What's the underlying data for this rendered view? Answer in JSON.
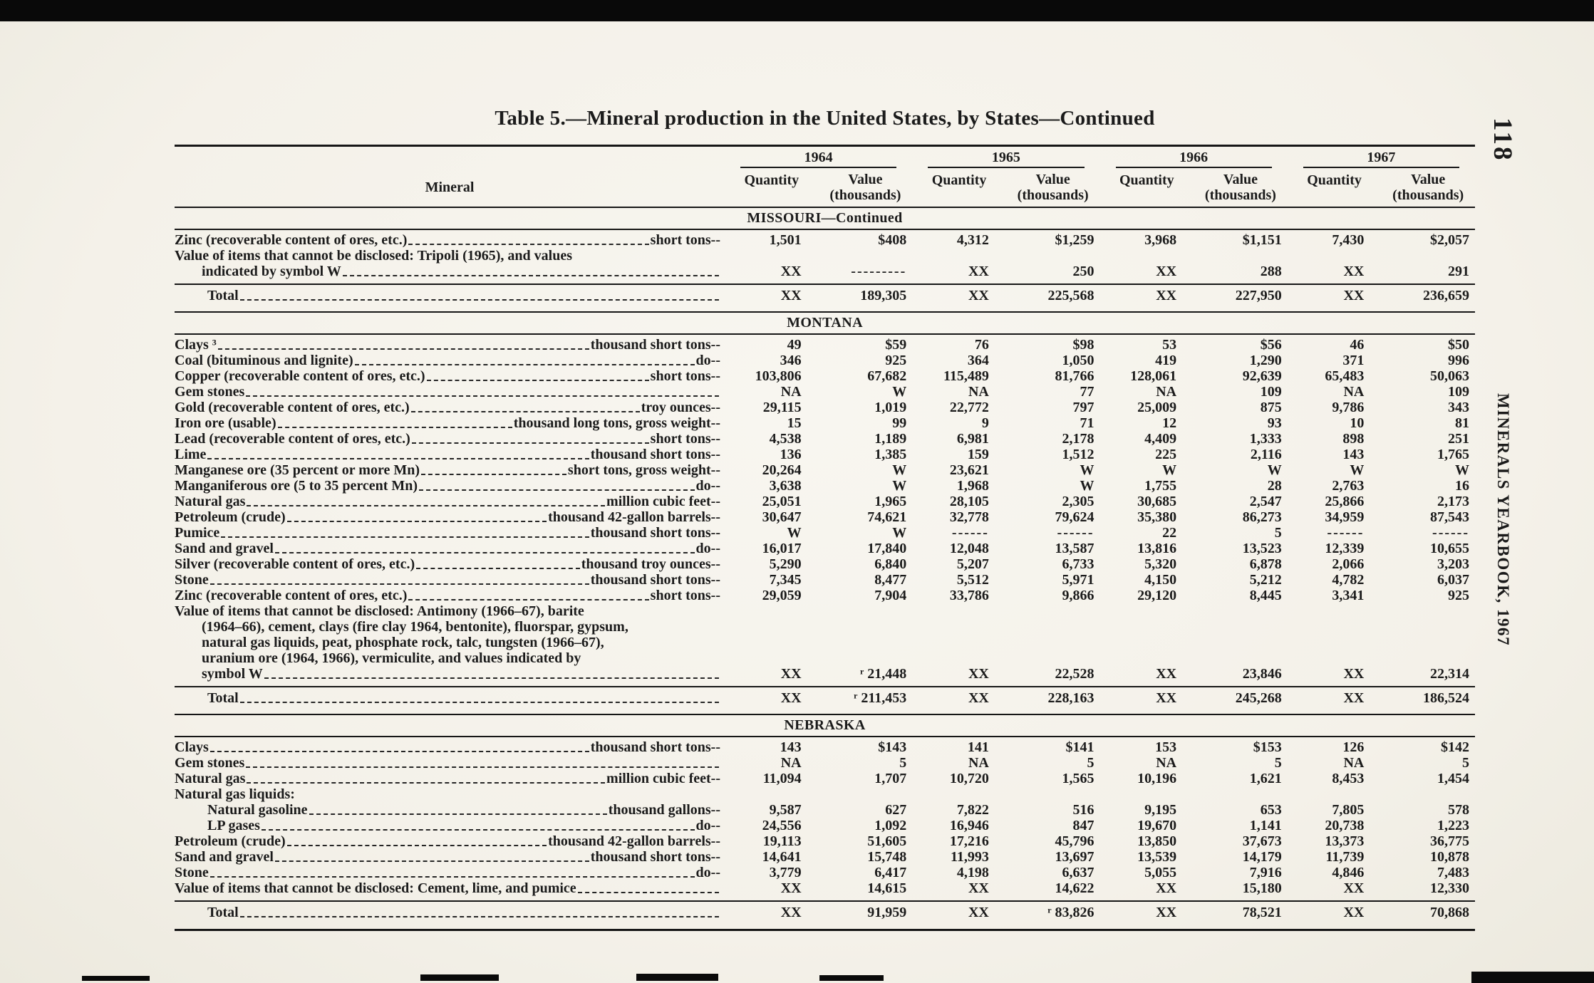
{
  "page": {
    "title": "Table 5.—Mineral production  in the United States, by States—Continued",
    "page_number": "118",
    "spine_text": "MINERALS YEARBOOK, 1967"
  },
  "table": {
    "mineral_header": "Mineral",
    "years": [
      "1964",
      "1965",
      "1966",
      "1967"
    ],
    "quantity_header": "Quantity",
    "value_header_line1": "Value",
    "value_header_line2": "(thousands)",
    "sections": [
      {
        "title": "MISSOURI—Continued",
        "rows": [
          {
            "type": "data",
            "label": "Zinc (recoverable content of ores, etc.)",
            "unit": "short tons",
            "values": [
              "1,501",
              "$408",
              "4,312",
              "$1,259",
              "3,968",
              "$1,151",
              "7,430",
              "$2,057"
            ]
          },
          {
            "type": "note",
            "label": [
              "Value of items that cannot be disclosed: Tripoli (1965), and values",
              "indicated by symbol W"
            ],
            "values": [
              "XX",
              "---------",
              "XX",
              "250",
              "XX",
              "288",
              "XX",
              "291"
            ]
          },
          {
            "type": "total",
            "label": "Total",
            "values": [
              "XX",
              "189,305",
              "XX",
              "225,568",
              "XX",
              "227,950",
              "XX",
              "236,659"
            ]
          }
        ]
      },
      {
        "title": "MONTANA",
        "rows": [
          {
            "type": "data",
            "label": "Clays ³",
            "unit": "thousand short tons",
            "values": [
              "49",
              "$59",
              "76",
              "$98",
              "53",
              "$56",
              "46",
              "$50"
            ]
          },
          {
            "type": "data",
            "label": "Coal (bituminous and lignite)",
            "unit": "do",
            "values": [
              "346",
              "925",
              "364",
              "1,050",
              "419",
              "1,290",
              "371",
              "996"
            ]
          },
          {
            "type": "data",
            "label": "Copper (recoverable content of ores, etc.)",
            "unit": "short tons",
            "values": [
              "103,806",
              "67,682",
              "115,489",
              "81,766",
              "128,061",
              "92,639",
              "65,483",
              "50,063"
            ]
          },
          {
            "type": "data",
            "label": "Gem stones",
            "unit": "",
            "values": [
              "NA",
              "W",
              "NA",
              "77",
              "NA",
              "109",
              "NA",
              "109"
            ]
          },
          {
            "type": "data",
            "label": "Gold (recoverable content of ores, etc.)",
            "unit": "troy ounces",
            "values": [
              "29,115",
              "1,019",
              "22,772",
              "797",
              "25,009",
              "875",
              "9,786",
              "343"
            ]
          },
          {
            "type": "data",
            "label": "Iron ore (usable)",
            "unit": "thousand long tons, gross weight",
            "values": [
              "15",
              "99",
              "9",
              "71",
              "12",
              "93",
              "10",
              "81"
            ]
          },
          {
            "type": "data",
            "label": "Lead (recoverable content of ores, etc.)",
            "unit": "short tons",
            "values": [
              "4,538",
              "1,189",
              "6,981",
              "2,178",
              "4,409",
              "1,333",
              "898",
              "251"
            ]
          },
          {
            "type": "data",
            "label": "Lime",
            "unit": "thousand short tons",
            "values": [
              "136",
              "1,385",
              "159",
              "1,512",
              "225",
              "2,116",
              "143",
              "1,765"
            ]
          },
          {
            "type": "data",
            "label": "Manganese ore (35 percent or more Mn)",
            "unit": "short tons, gross weight",
            "values": [
              "20,264",
              "W",
              "23,621",
              "W",
              "W",
              "W",
              "W",
              "W"
            ]
          },
          {
            "type": "data",
            "label": "Manganiferous ore (5 to 35 percent Mn)",
            "unit": "do",
            "values": [
              "3,638",
              "W",
              "1,968",
              "W",
              "1,755",
              "28",
              "2,763",
              "16"
            ]
          },
          {
            "type": "data",
            "label": "Natural gas",
            "unit": "million cubic feet",
            "values": [
              "25,051",
              "1,965",
              "28,105",
              "2,305",
              "30,685",
              "2,547",
              "25,866",
              "2,173"
            ]
          },
          {
            "type": "data",
            "label": "Petroleum (crude)",
            "unit": "thousand 42-gallon barrels",
            "values": [
              "30,647",
              "74,621",
              "32,778",
              "79,624",
              "35,380",
              "86,273",
              "34,959",
              "87,543"
            ]
          },
          {
            "type": "data",
            "label": "Pumice",
            "unit": "thousand short tons",
            "values": [
              "W",
              "W",
              "------",
              "------",
              "22",
              "5",
              "------",
              "------"
            ]
          },
          {
            "type": "data",
            "label": "Sand and gravel",
            "unit": "do",
            "values": [
              "16,017",
              "17,840",
              "12,048",
              "13,587",
              "13,816",
              "13,523",
              "12,339",
              "10,655"
            ]
          },
          {
            "type": "data",
            "label": "Silver (recoverable content of ores, etc.)",
            "unit": "thousand troy ounces",
            "values": [
              "5,290",
              "6,840",
              "5,207",
              "6,733",
              "5,320",
              "6,878",
              "2,066",
              "3,203"
            ]
          },
          {
            "type": "data",
            "label": "Stone",
            "unit": "thousand short tons",
            "values": [
              "7,345",
              "8,477",
              "5,512",
              "5,971",
              "4,150",
              "5,212",
              "4,782",
              "6,037"
            ]
          },
          {
            "type": "data",
            "label": "Zinc (recoverable content of ores, etc.)",
            "unit": "short tons",
            "values": [
              "29,059",
              "7,904",
              "33,786",
              "9,866",
              "29,120",
              "8,445",
              "3,341",
              "925"
            ]
          },
          {
            "type": "note",
            "label": [
              "Value of items that cannot be disclosed: Antimony (1966–67), barite",
              "(1964–66), cement, clays (fire clay 1964, bentonite), fluorspar, gypsum,",
              "natural gas liquids, peat, phosphate rock, talc, tungsten (1966–67),",
              "uranium ore (1964, 1966), vermiculite, and values indicated by",
              "symbol W"
            ],
            "values": [
              "XX",
              "ʳ 21,448",
              "XX",
              "22,528",
              "XX",
              "23,846",
              "XX",
              "22,314"
            ]
          },
          {
            "type": "total",
            "label": "Total",
            "values": [
              "XX",
              "ʳ 211,453",
              "XX",
              "228,163",
              "XX",
              "245,268",
              "XX",
              "186,524"
            ]
          }
        ]
      },
      {
        "title": "NEBRASKA",
        "rows": [
          {
            "type": "data",
            "label": "Clays",
            "unit": "thousand short tons",
            "values": [
              "143",
              "$143",
              "141",
              "$141",
              "153",
              "$153",
              "126",
              "$142"
            ]
          },
          {
            "type": "data",
            "label": "Gem stones",
            "unit": "",
            "values": [
              "NA",
              "5",
              "NA",
              "5",
              "NA",
              "5",
              "NA",
              "5"
            ]
          },
          {
            "type": "data",
            "label": "Natural gas",
            "unit": "million cubic feet",
            "values": [
              "11,094",
              "1,707",
              "10,720",
              "1,565",
              "10,196",
              "1,621",
              "8,453",
              "1,454"
            ]
          },
          {
            "type": "subhead",
            "label": "Natural gas liquids:"
          },
          {
            "type": "sub",
            "label": "Natural gasoline",
            "unit": "thousand gallons",
            "values": [
              "9,587",
              "627",
              "7,822",
              "516",
              "9,195",
              "653",
              "7,805",
              "578"
            ]
          },
          {
            "type": "sub",
            "label": "LP gases",
            "unit": "do",
            "values": [
              "24,556",
              "1,092",
              "16,946",
              "847",
              "19,670",
              "1,141",
              "20,738",
              "1,223"
            ]
          },
          {
            "type": "data",
            "label": "Petroleum (crude)",
            "unit": "thousand 42-gallon barrels",
            "values": [
              "19,113",
              "51,605",
              "17,216",
              "45,796",
              "13,850",
              "37,673",
              "13,373",
              "36,775"
            ]
          },
          {
            "type": "data",
            "label": "Sand and gravel",
            "unit": "thousand short tons",
            "values": [
              "14,641",
              "15,748",
              "11,993",
              "13,697",
              "13,539",
              "14,179",
              "11,739",
              "10,878"
            ]
          },
          {
            "type": "data",
            "label": "Stone",
            "unit": "do",
            "values": [
              "3,779",
              "6,417",
              "4,198",
              "6,637",
              "5,055",
              "7,916",
              "4,846",
              "7,483"
            ]
          },
          {
            "type": "note",
            "label": [
              "Value of items that cannot be disclosed: Cement, lime, and pumice"
            ],
            "values": [
              "XX",
              "14,615",
              "XX",
              "14,622",
              "XX",
              "15,180",
              "XX",
              "12,330"
            ]
          },
          {
            "type": "total",
            "label": "Total",
            "values": [
              "XX",
              "91,959",
              "XX",
              "ʳ 83,826",
              "XX",
              "78,521",
              "XX",
              "70,868"
            ]
          }
        ]
      }
    ]
  }
}
